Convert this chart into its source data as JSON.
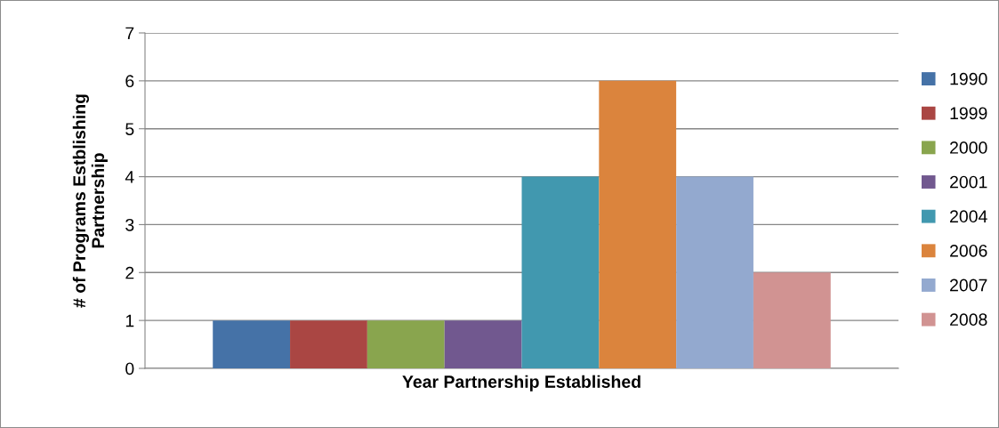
{
  "chart_data": {
    "type": "bar",
    "xlabel": "Year Partnership Established",
    "ylabel": "# of Programs Estblishing\nPartnership",
    "categories": [
      null
    ],
    "series": [
      {
        "name": "1990",
        "color": "#4572a7",
        "values": [
          1
        ]
      },
      {
        "name": "1999",
        "color": "#aa4643",
        "values": [
          1
        ]
      },
      {
        "name": "2000",
        "color": "#89a54e",
        "values": [
          1
        ]
      },
      {
        "name": "2001",
        "color": "#71588f",
        "values": [
          1
        ]
      },
      {
        "name": "2004",
        "color": "#4198af",
        "values": [
          4
        ]
      },
      {
        "name": "2006",
        "color": "#db843d",
        "values": [
          6
        ]
      },
      {
        "name": "2007",
        "color": "#93a9cf",
        "values": [
          4
        ]
      },
      {
        "name": "2008",
        "color": "#d19392",
        "values": [
          2
        ]
      }
    ],
    "ylim": [
      0,
      7
    ],
    "yticks": [
      0,
      1,
      2,
      3,
      4,
      5,
      6,
      7
    ],
    "grid": "y",
    "legend": "right"
  }
}
